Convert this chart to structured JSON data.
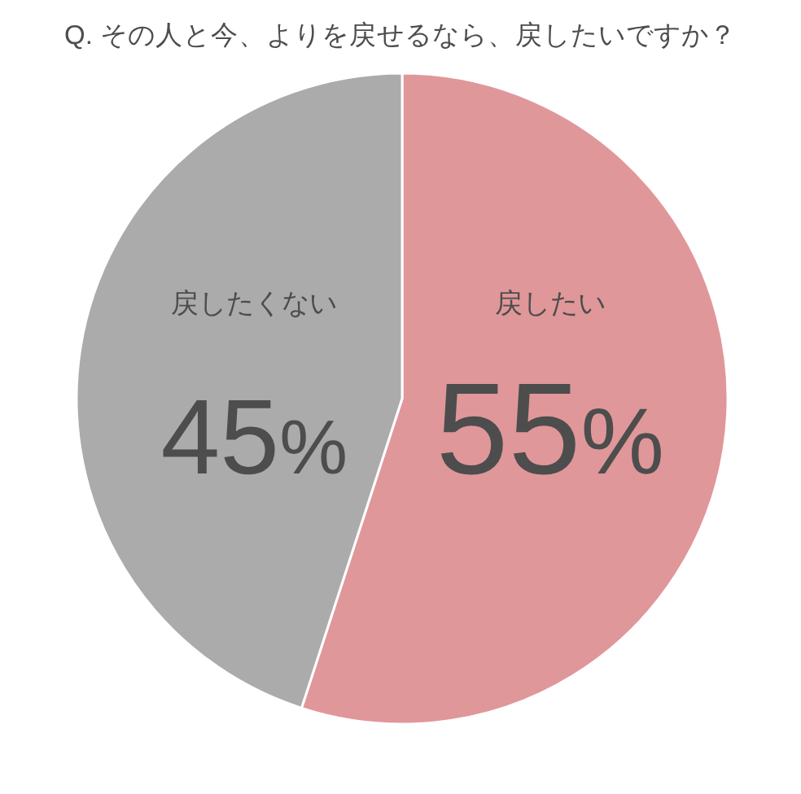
{
  "chart_data": {
    "type": "pie",
    "title": "Q. その人と今、よりを戻せるなら、戻したいですか？",
    "categories": [
      "戻したい",
      "戻したくない"
    ],
    "values": [
      55,
      45
    ],
    "colors": [
      "#e0979a",
      "#ababab"
    ],
    "value_labels": [
      "55%",
      "45%"
    ]
  }
}
